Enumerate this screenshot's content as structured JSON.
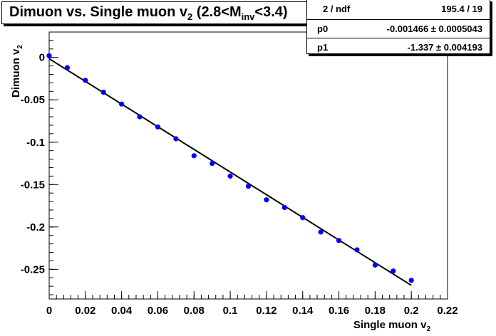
{
  "title": {
    "main": "Dimuon vs. Single muon v",
    "sub": "2",
    "rest": " (2.8<M",
    "inv": "inv",
    "end": "<3.4)"
  },
  "stats": {
    "rows": [
      {
        "label": "2 / ndf",
        "value": "195.4 / 19"
      },
      {
        "label": "p0",
        "value": "-0.001466 ± 0.0005043"
      },
      {
        "label": "p1",
        "value": "-1.337 ± 0.004193"
      }
    ]
  },
  "chart_data": {
    "type": "scatter",
    "xlabel": "Single muon v",
    "xlabel_sub": "2",
    "ylabel": "Dimuon v",
    "ylabel_sub": "2",
    "xlim": [
      0,
      0.22
    ],
    "ylim": [
      -0.285,
      0.03
    ],
    "x_ticks": [
      "0",
      "0.02",
      "0.04",
      "0.06",
      "0.08",
      "0.1",
      "0.12",
      "0.14",
      "0.16",
      "0.18",
      "0.2",
      "0.22"
    ],
    "y_ticks": [
      "0",
      "-0.05",
      "-0.1",
      "-0.15",
      "-0.2",
      "-0.25"
    ],
    "series": [
      {
        "color": "#0000ff",
        "points": [
          [
            0.0,
            0.002
          ],
          [
            0.01,
            -0.012
          ],
          [
            0.02,
            -0.027
          ],
          [
            0.03,
            -0.041
          ],
          [
            0.04,
            -0.055
          ],
          [
            0.05,
            -0.07
          ],
          [
            0.06,
            -0.082
          ],
          [
            0.07,
            -0.096
          ],
          [
            0.08,
            -0.116
          ],
          [
            0.09,
            -0.125
          ],
          [
            0.1,
            -0.14
          ],
          [
            0.11,
            -0.152
          ],
          [
            0.12,
            -0.168
          ],
          [
            0.13,
            -0.177
          ],
          [
            0.14,
            -0.189
          ],
          [
            0.15,
            -0.206
          ],
          [
            0.16,
            -0.216
          ],
          [
            0.17,
            -0.227
          ],
          [
            0.18,
            -0.245
          ],
          [
            0.19,
            -0.252
          ],
          [
            0.2,
            -0.263
          ]
        ]
      }
    ],
    "fit": {
      "color": "#000000",
      "x": [
        0.0,
        0.2
      ],
      "y": [
        -0.0015,
        -0.2689
      ]
    }
  }
}
